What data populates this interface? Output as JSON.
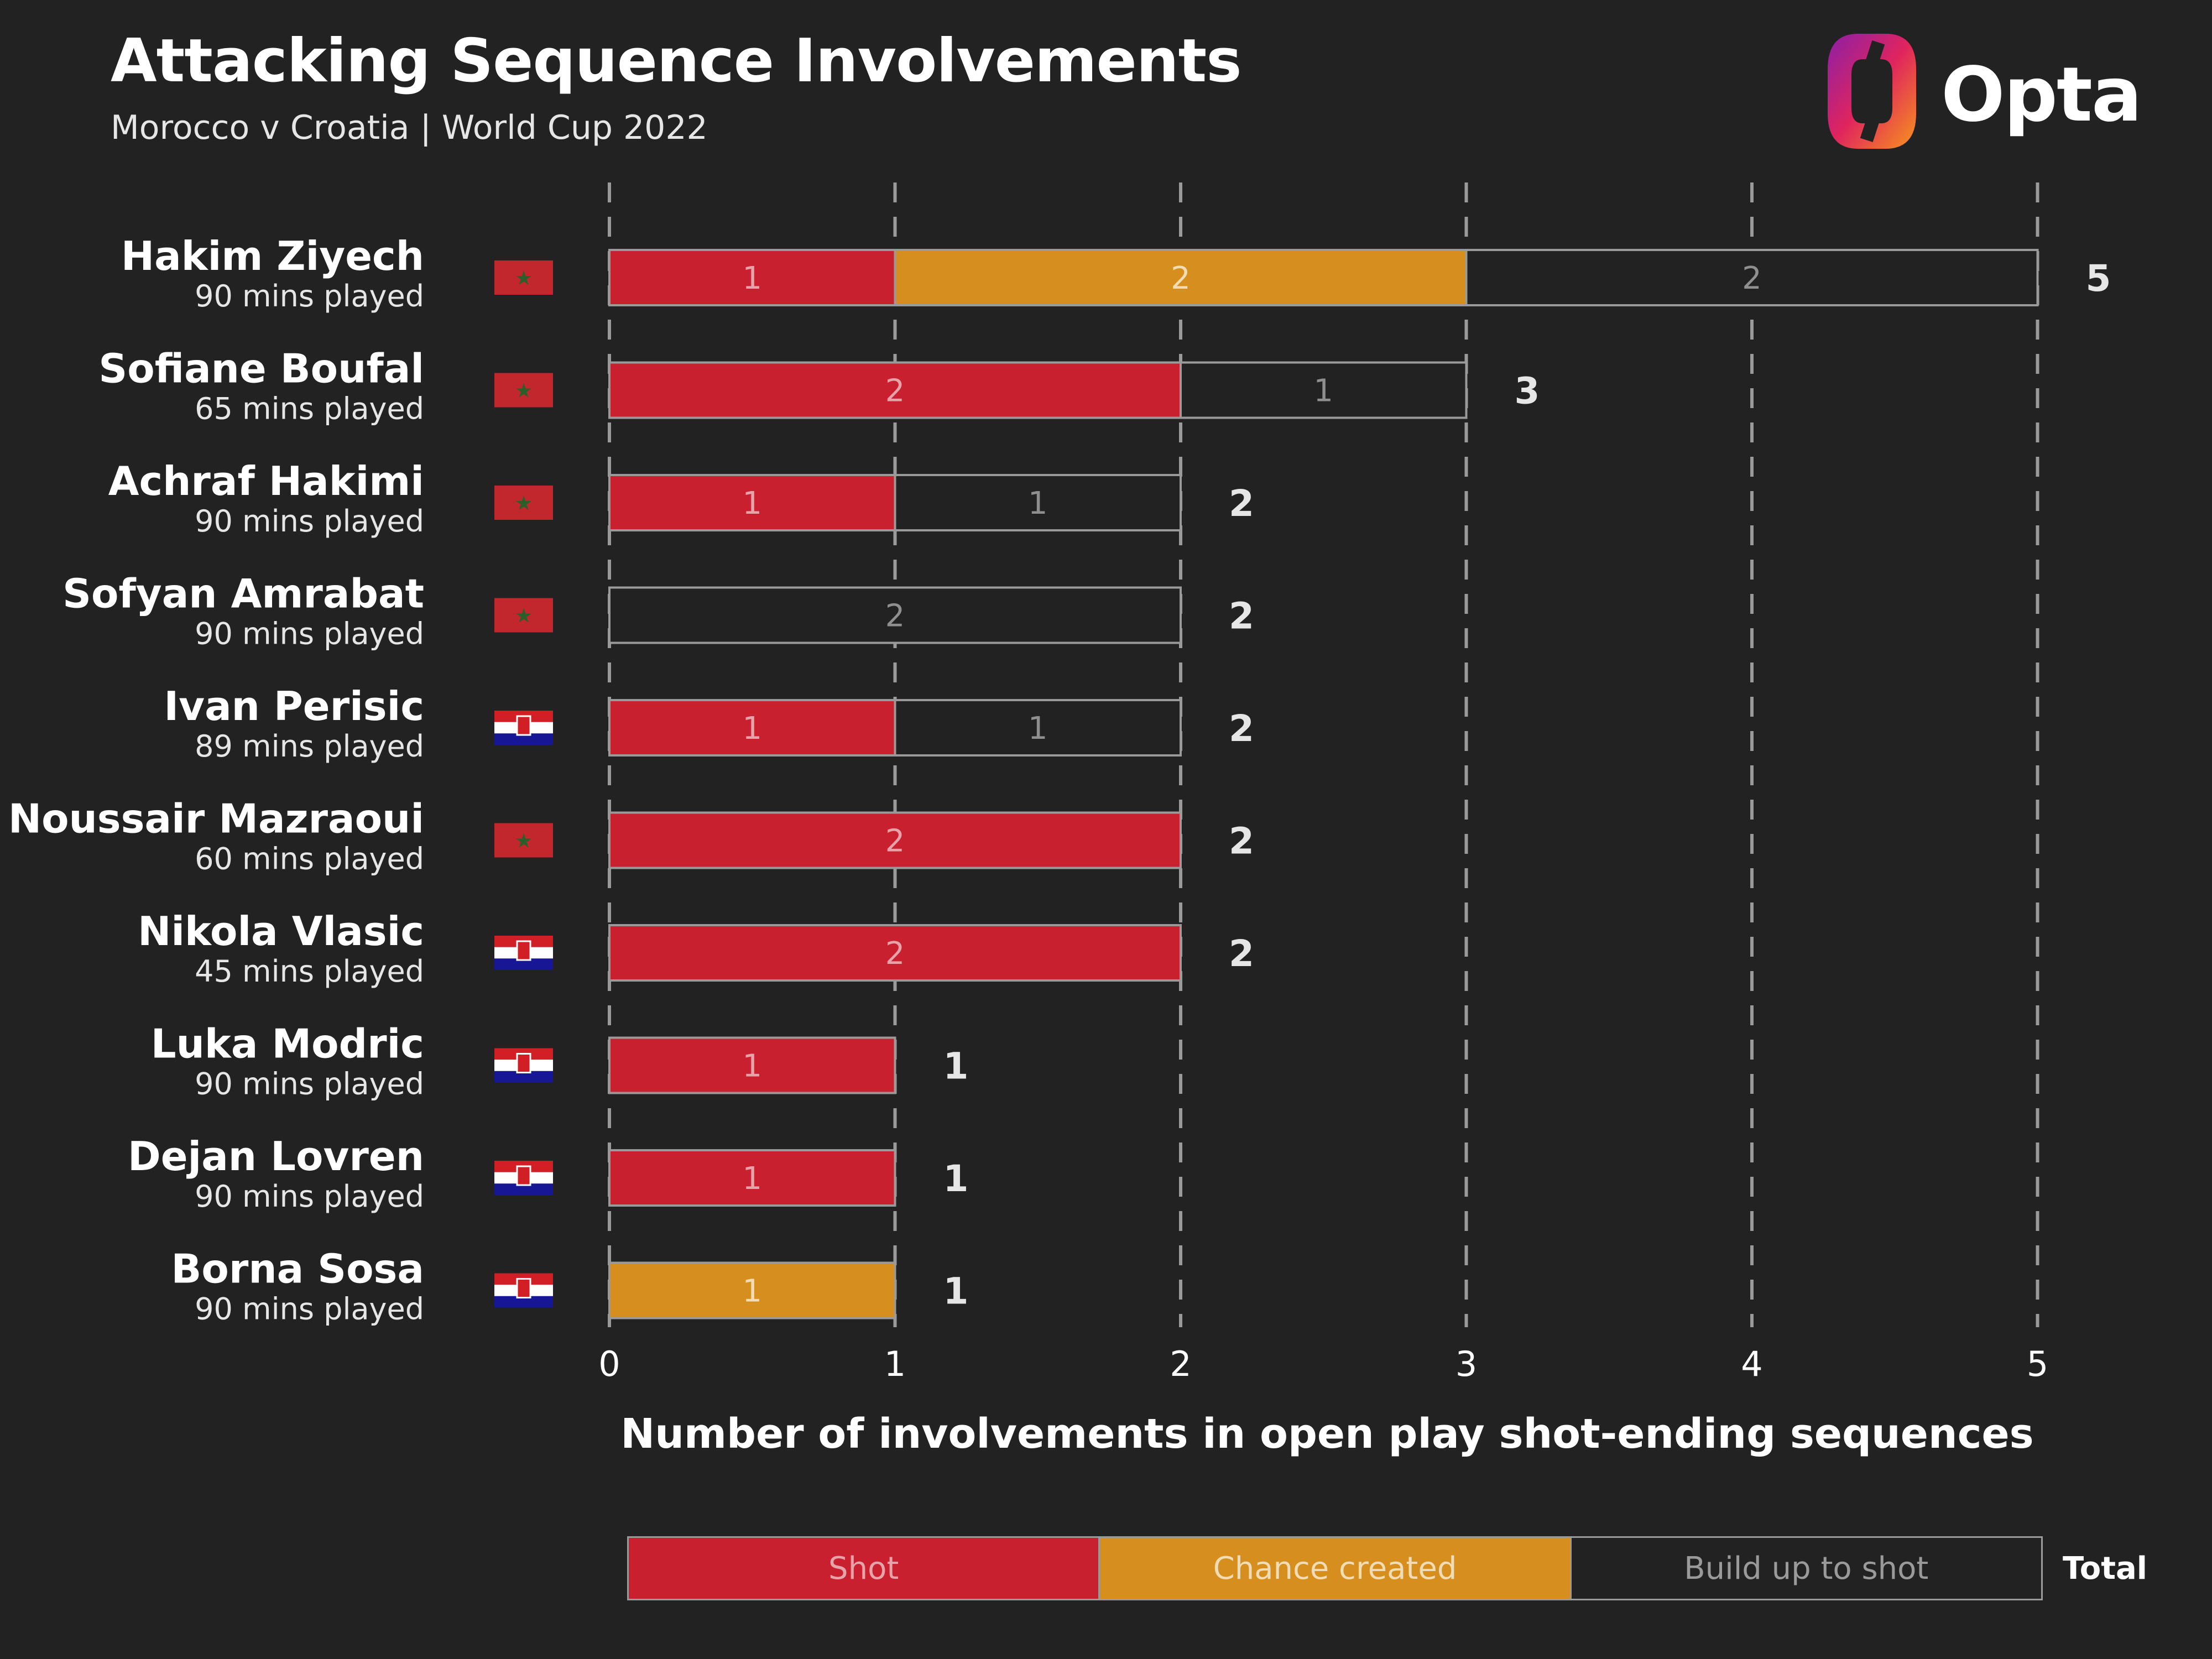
{
  "header": {
    "title": "Attacking Sequence Involvements",
    "subtitle": "Morocco v Croatia | World Cup 2022"
  },
  "brand": {
    "name": "Opta"
  },
  "colors": {
    "background": "#222222",
    "shot": "#c8202e",
    "chance_created": "#d68f1e",
    "build_up": "#222222",
    "outline": "#9a9a9a",
    "grid": "#9a9a9a",
    "morocco_flag": "#c1272d",
    "croatia_red": "#d21f26",
    "croatia_blue": "#171796"
  },
  "chart_data": {
    "type": "bar",
    "orientation": "horizontal",
    "stacked": true,
    "xlabel": "Number of involvements in open play shot-ending sequences",
    "xlim": [
      0,
      5
    ],
    "xticks": [
      0,
      1,
      2,
      3,
      4,
      5
    ],
    "grid": "vertical dashed",
    "categories": [
      "Hakim Ziyech",
      "Sofiane Boufal",
      "Achraf Hakimi",
      "Sofyan Amrabat",
      "Ivan Perisic",
      "Noussair Mazraoui",
      "Nikola Vlasic",
      "Luka Modric",
      "Dejan Lovren",
      "Borna Sosa"
    ],
    "minutes_labels": [
      "90 mins played",
      "65 mins played",
      "90 mins played",
      "90 mins played",
      "89 mins played",
      "60 mins played",
      "45 mins played",
      "90 mins played",
      "90 mins played",
      "90 mins played"
    ],
    "teams": [
      "Morocco",
      "Morocco",
      "Morocco",
      "Morocco",
      "Croatia",
      "Morocco",
      "Croatia",
      "Croatia",
      "Croatia",
      "Croatia"
    ],
    "series": [
      {
        "name": "Shot",
        "values": [
          1,
          2,
          1,
          0,
          1,
          2,
          2,
          1,
          1,
          0
        ]
      },
      {
        "name": "Chance created",
        "values": [
          2,
          0,
          0,
          0,
          0,
          0,
          0,
          0,
          0,
          1
        ]
      },
      {
        "name": "Build up to shot",
        "values": [
          2,
          1,
          1,
          2,
          1,
          0,
          0,
          0,
          0,
          0
        ]
      }
    ],
    "totals": [
      5,
      3,
      2,
      2,
      2,
      2,
      2,
      1,
      1,
      1
    ],
    "legend": {
      "position": "bottom",
      "labels": [
        "Shot",
        "Chance created",
        "Build up to shot"
      ],
      "total_label": "Total"
    }
  }
}
